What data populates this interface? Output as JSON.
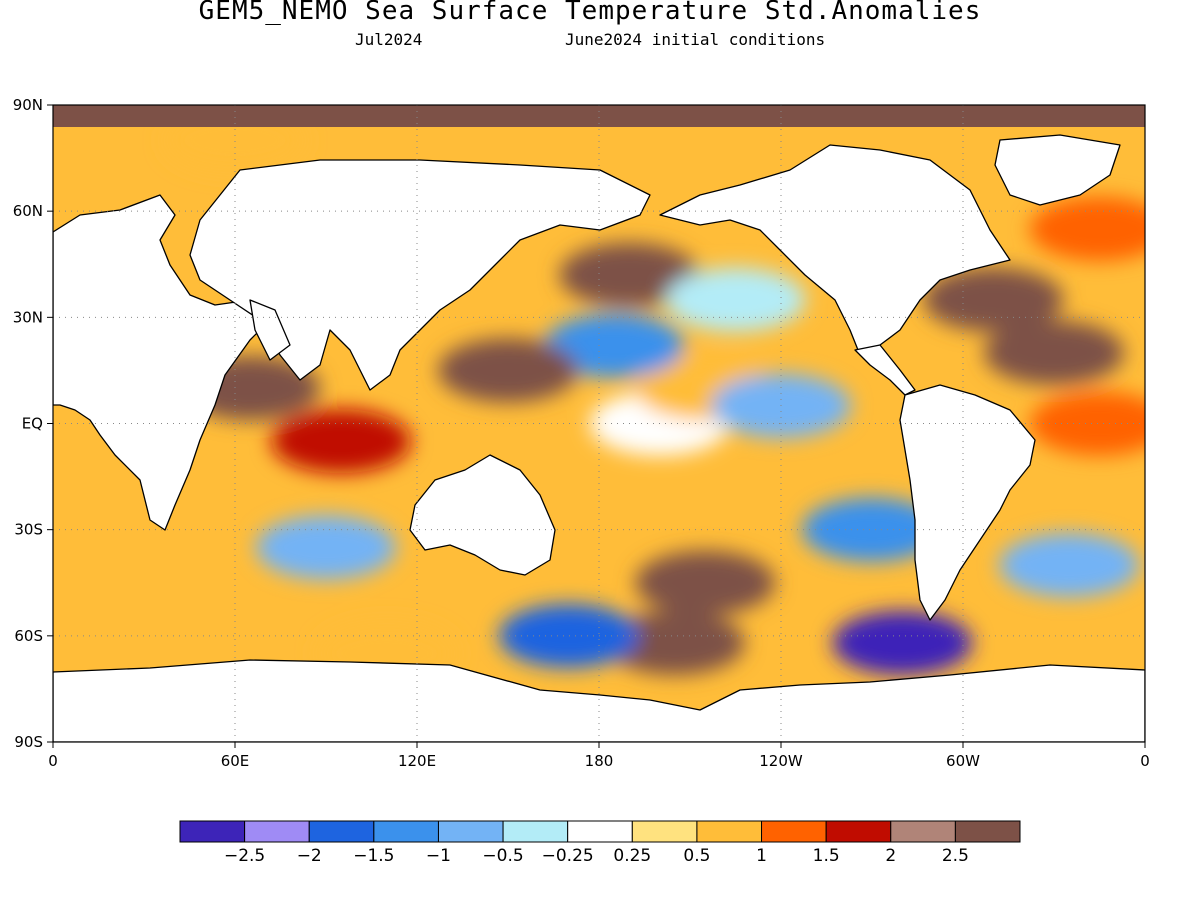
{
  "title": "GEM5_NEMO Sea Surface Temperature Std.Anomalies",
  "subtitle_month": "Jul2024",
  "subtitle_init": "June2024 initial conditions",
  "map": {
    "projection": "equirectangular",
    "lon_range": [
      0,
      360
    ],
    "lat_range": [
      -90,
      90
    ],
    "grid": "dotted",
    "x_ticks": [
      {
        "lon": 0,
        "label": "0"
      },
      {
        "lon": 60,
        "label": "60E"
      },
      {
        "lon": 120,
        "label": "120E"
      },
      {
        "lon": 180,
        "label": "180"
      },
      {
        "lon": 240,
        "label": "120W"
      },
      {
        "lon": 300,
        "label": "60W"
      },
      {
        "lon": 360,
        "label": "0"
      }
    ],
    "y_ticks": [
      {
        "lat": 90,
        "label": "90N"
      },
      {
        "lat": 60,
        "label": "60N"
      },
      {
        "lat": 30,
        "label": "30N"
      },
      {
        "lat": 0,
        "label": "EQ"
      },
      {
        "lat": -30,
        "label": "30S"
      },
      {
        "lat": -60,
        "label": "60S"
      },
      {
        "lat": -90,
        "label": "90S"
      }
    ]
  },
  "colorbar": {
    "colors": [
      "#3d24b8",
      "#9f8bf5",
      "#1e64e0",
      "#3b91ec",
      "#73b3f5",
      "#b3ecf7",
      "#ffffff",
      "#ffe27f",
      "#ffbd39",
      "#ff6200",
      "#c00c00",
      "#b08478",
      "#7d5147"
    ],
    "labels": [
      "−2.5",
      "−2",
      "−1.5",
      "−1",
      "−0.5",
      "−0.25",
      "0.25",
      "0.5",
      "1",
      "1.5",
      "2",
      "2.5"
    ],
    "thresholds": [
      -2.5,
      -2,
      -1.5,
      -1,
      -0.5,
      -0.25,
      0.25,
      0.5,
      1,
      1.5,
      2,
      2.5
    ]
  },
  "anomaly_features": [
    {
      "lon": 200,
      "lat": 0,
      "value": 0.1
    },
    {
      "lon": 215,
      "lat": 10,
      "value": 0.8
    },
    {
      "lon": 185,
      "lat": 22,
      "value": -1.3
    },
    {
      "lon": 190,
      "lat": 42,
      "value": 2.6
    },
    {
      "lon": 225,
      "lat": 35,
      "value": -0.4
    },
    {
      "lon": 240,
      "lat": 5,
      "value": -0.9
    },
    {
      "lon": 150,
      "lat": 15,
      "value": 2.6
    },
    {
      "lon": 95,
      "lat": -5,
      "value": 1.8
    },
    {
      "lon": 65,
      "lat": 10,
      "value": 2.6
    },
    {
      "lon": 90,
      "lat": -35,
      "value": -0.6
    },
    {
      "lon": 215,
      "lat": -45,
      "value": 2.6
    },
    {
      "lon": 205,
      "lat": -62,
      "value": 2.6
    },
    {
      "lon": 170,
      "lat": -60,
      "value": -1.6
    },
    {
      "lon": 270,
      "lat": -30,
      "value": -1.1
    },
    {
      "lon": 280,
      "lat": -62,
      "value": -2.6
    },
    {
      "lon": 310,
      "lat": 35,
      "value": 2.6
    },
    {
      "lon": 330,
      "lat": 20,
      "value": 2.6
    },
    {
      "lon": 345,
      "lat": 0,
      "value": 1.2
    },
    {
      "lon": 335,
      "lat": -40,
      "value": -0.7
    },
    {
      "lon": 345,
      "lat": 55,
      "value": 1.4
    },
    {
      "lon": 60,
      "lat": 80,
      "value": 0.8
    },
    {
      "lon": 110,
      "lat": -65,
      "value": 0.6
    }
  ]
}
